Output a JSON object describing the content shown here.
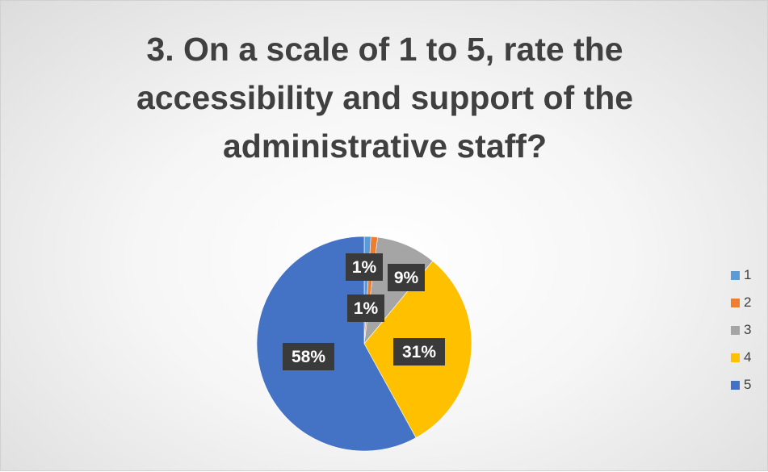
{
  "chart_data": {
    "type": "pie",
    "title": "3. On a scale of 1 to 5, rate the accessibility and support of the administrative staff?",
    "categories": [
      "1",
      "2",
      "3",
      "4",
      "5"
    ],
    "values": [
      1,
      1,
      9,
      31,
      58
    ],
    "data_labels": [
      "1%",
      "1%",
      "9%",
      "31%",
      "58%"
    ],
    "colors": [
      "#5B9BD5",
      "#ED7D31",
      "#A5A5A5",
      "#FFC000",
      "#4472C4"
    ],
    "legend_position": "right",
    "start_angle_deg": 0,
    "direction": "clockwise"
  }
}
